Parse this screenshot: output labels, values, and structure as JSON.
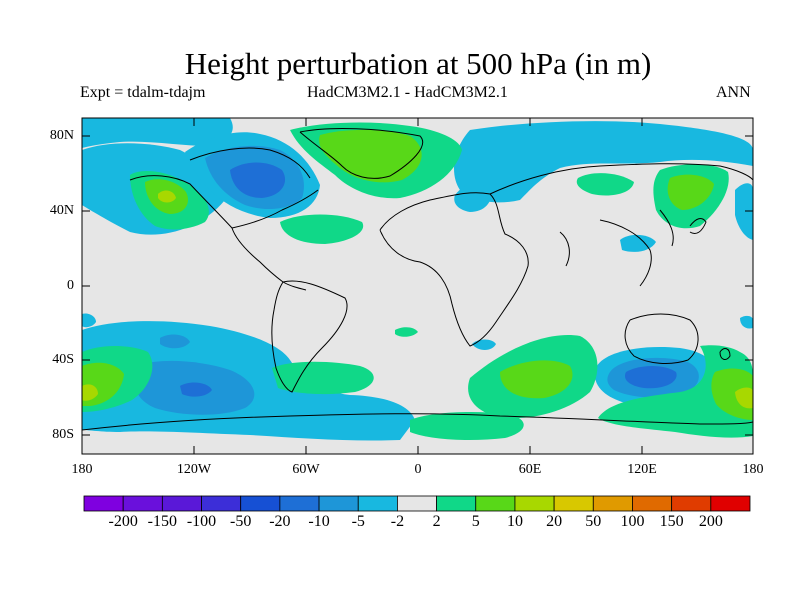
{
  "title": "Height perturbation at 500 hPa (in m)",
  "subtitle_left": "Expt = tdalm-tdajm",
  "subtitle_center": "HadCM3M2.1 - HadCM3M2.1",
  "subtitle_right": "ANN",
  "lat_labels": [
    "80N",
    "40N",
    "0",
    "40S",
    "80S"
  ],
  "lon_labels": [
    "180",
    "120W",
    "60W",
    "0",
    "60E",
    "120E",
    "180"
  ],
  "colorbar": {
    "tick_labels": [
      "-200",
      "-150",
      "-100",
      "-50",
      "-20",
      "-10",
      "-5",
      "-2",
      "2",
      "5",
      "10",
      "20",
      "50",
      "100",
      "150",
      "200"
    ],
    "colors": [
      "#7f00e0",
      "#6a10dc",
      "#5a18d8",
      "#3c2ed8",
      "#1650d4",
      "#1e6fd6",
      "#1e96d8",
      "#18b8e0",
      "#e6e6e6",
      "#10d888",
      "#58d818",
      "#a8d800",
      "#d8c800",
      "#e09a00",
      "#e06a00",
      "#e03c00",
      "#e00000"
    ]
  },
  "colors": {
    "background": "#e6e6e6",
    "coast": "#000000",
    "neg_light": "#18b8e0",
    "neg_mid": "#1e96d8",
    "neg_strong": "#1e6fd6",
    "pos_light": "#10d888",
    "pos_mid": "#58d818",
    "pos_strong": "#a8d800"
  }
}
